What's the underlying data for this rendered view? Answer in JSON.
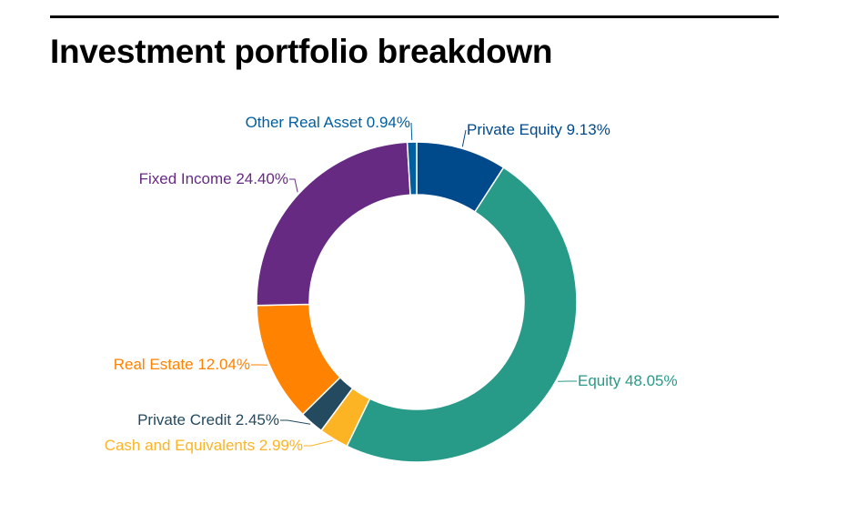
{
  "title": "Investment portfolio breakdown",
  "chart_data": {
    "type": "pie",
    "variant": "donut",
    "title": "Investment portfolio breakdown",
    "slices": [
      {
        "label": "Private Equity 9.13%",
        "value": 9.13,
        "color": "#00498a"
      },
      {
        "label": "Equity 48.05%",
        "value": 48.05,
        "color": "#289a88"
      },
      {
        "label": "Cash and Equivalents 2.99%",
        "value": 2.99,
        "color": "#fcb424"
      },
      {
        "label": "Private Credit 2.45%",
        "value": 2.45,
        "color": "#244a5f"
      },
      {
        "label": "Real Estate 12.04%",
        "value": 12.04,
        "color": "#ff8200"
      },
      {
        "label": "Fixed Income 24.40%",
        "value": 24.4,
        "color": "#662a83"
      },
      {
        "label": "Other Real Asset 0.94%",
        "value": 0.94,
        "color": "#005f9e"
      }
    ]
  }
}
